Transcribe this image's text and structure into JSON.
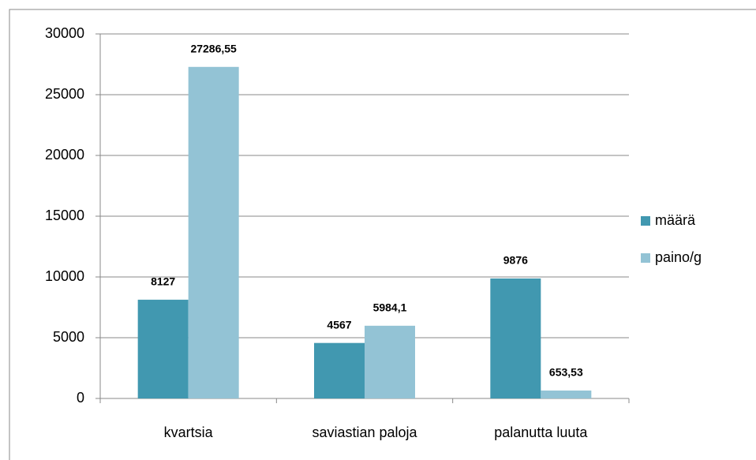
{
  "chart_data": {
    "type": "bar",
    "categories": [
      "kvartsia",
      "saviastian paloja",
      "palanutta luuta"
    ],
    "series": [
      {
        "name": "määrä",
        "color": "#4198b0",
        "values": [
          8127,
          4567,
          9876
        ]
      },
      {
        "name": "paino/g",
        "color": "#93c3d5",
        "values": [
          27286.55,
          5984.1,
          653.53
        ],
        "value_labels": [
          "27286,55",
          "5984,1",
          "653,53"
        ]
      }
    ],
    "ylim": [
      0,
      30000
    ],
    "yticks": [
      0,
      5000,
      10000,
      15000,
      20000,
      25000,
      30000
    ],
    "grid": true,
    "legend": "right"
  }
}
